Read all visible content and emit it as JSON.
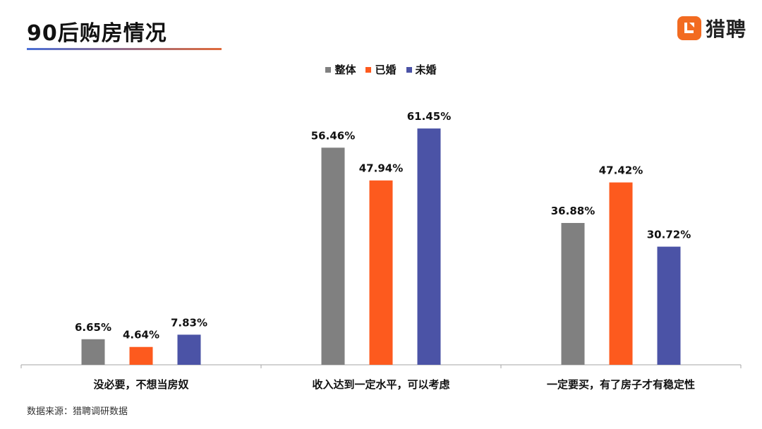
{
  "header": {
    "title": "90后购房情况",
    "brand_name": "猎聘"
  },
  "colors": {
    "overall": "#808080",
    "married": "#fd5a1e",
    "unmarried": "#4b53a6",
    "brand": "#f26b21"
  },
  "footer": {
    "source": "数据来源：猎聘调研数据"
  },
  "chart_data": {
    "type": "bar",
    "categories": [
      "没必要，不想当房奴",
      "收入达到一定水平，可以考虑",
      "一定要买，有了房子才有稳定性"
    ],
    "series": [
      {
        "name": "整体",
        "values": [
          6.65,
          56.46,
          36.88
        ],
        "labels": [
          "6.65%",
          "56.46%",
          "36.88%"
        ]
      },
      {
        "name": "已婚",
        "values": [
          4.64,
          47.94,
          47.42
        ],
        "labels": [
          "4.64%",
          "47.94%",
          "47.42%"
        ]
      },
      {
        "name": "未婚",
        "values": [
          7.83,
          61.45,
          30.72
        ],
        "labels": [
          "7.83%",
          "61.45%",
          "30.72%"
        ]
      }
    ],
    "ylim": [
      0,
      65
    ],
    "legend_position": "top-center",
    "grid": false
  }
}
